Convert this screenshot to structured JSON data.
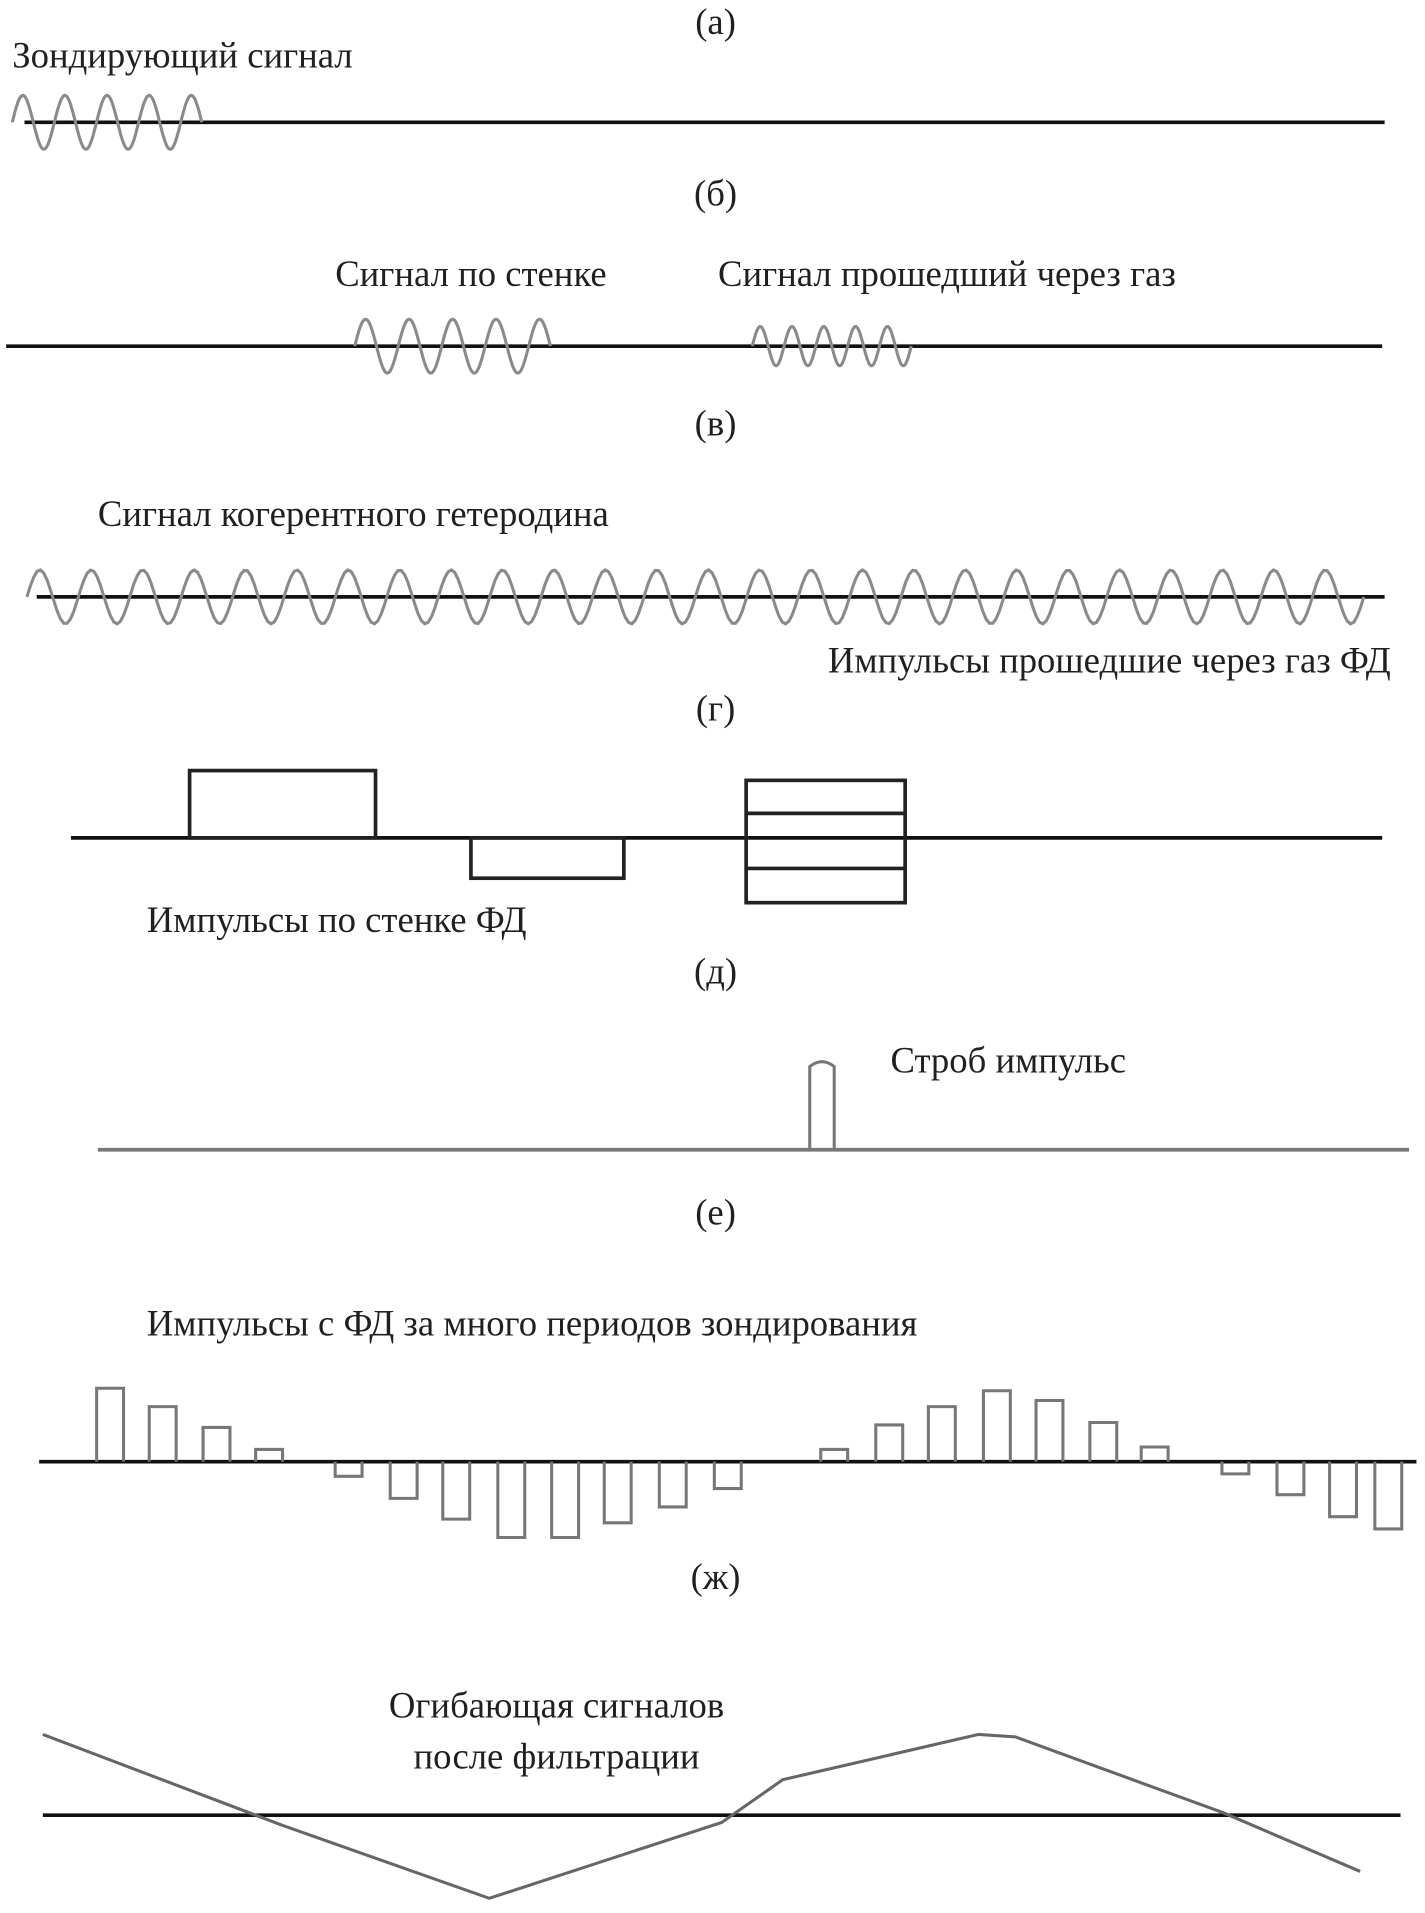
{
  "panels": {
    "a": {
      "label": "(а)",
      "text": "Зондирующий сигнал"
    },
    "b": {
      "label": "(б)",
      "text_wall": "Сигнал по стенке",
      "text_gas": "Сигнал прошедший через газ"
    },
    "v": {
      "label": "(в)",
      "text": "Сигнал когерентного гетеродина",
      "text_below": "Импульсы прошедшие через газ ФД"
    },
    "g": {
      "label": "(г)",
      "text": "Импульсы по стенке ФД"
    },
    "d": {
      "label": "(д)",
      "text": "Строб импульс"
    },
    "e": {
      "label": "(е)",
      "text": "Импульсы с ФД за много периодов зондирования"
    },
    "zh": {
      "label": "(ж)",
      "text_line1": "Огибающая сигналов",
      "text_line2": "после фильтрации"
    }
  },
  "colors": {
    "axis": "#111111",
    "signal": "#8a8a8a"
  }
}
